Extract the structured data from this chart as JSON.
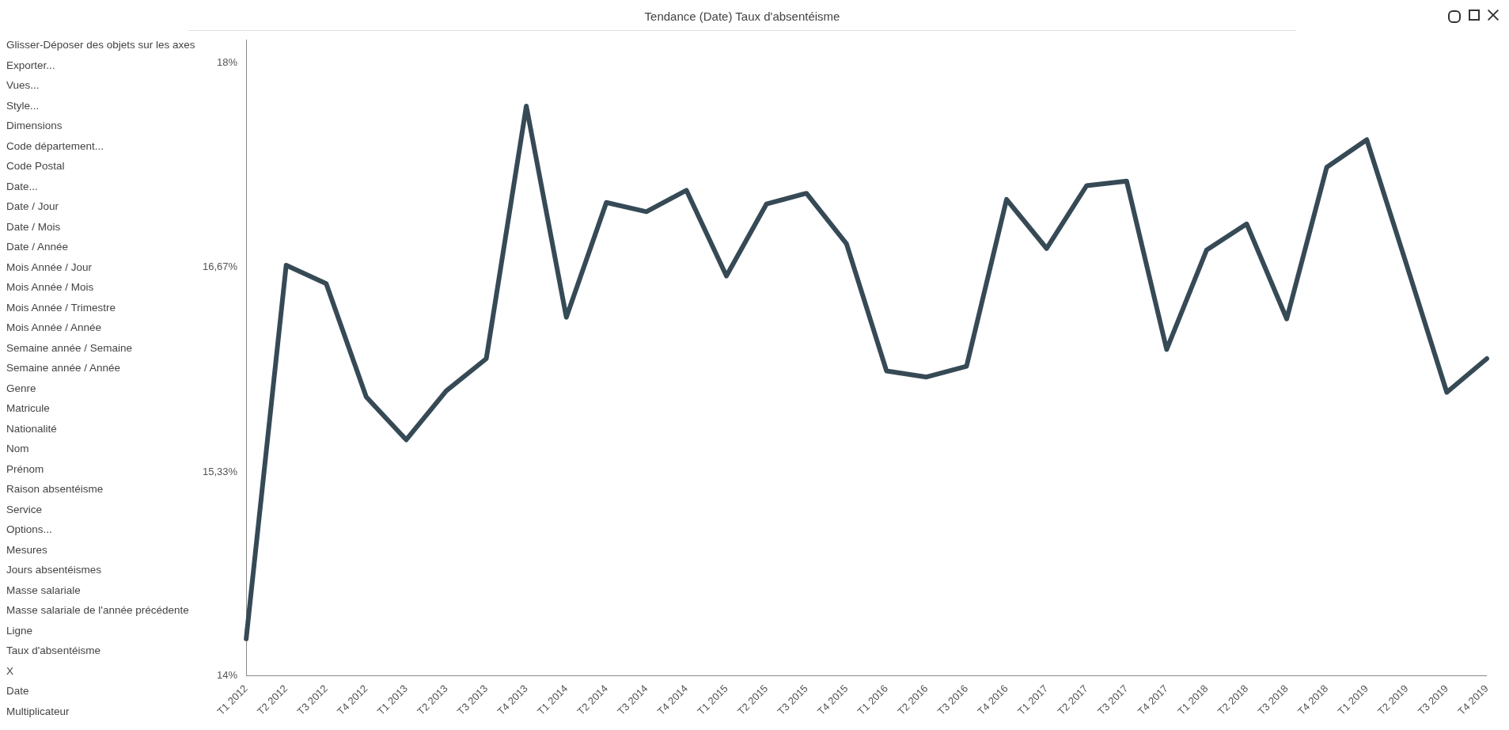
{
  "chart_data": {
    "type": "line",
    "title": "Tendance (Date) Taux d'absentéisme",
    "categories": [
      "T1 2012",
      "T2 2012",
      "T3 2012",
      "T4 2012",
      "T1 2013",
      "T2 2013",
      "T3 2013",
      "T4 2013",
      "T1 2014",
      "T2 2014",
      "T3 2014",
      "T4 2014",
      "T1 2015",
      "T2 2015",
      "T3 2015",
      "T4 2015",
      "T1 2016",
      "T2 2016",
      "T3 2016",
      "T4 2016",
      "T1 2017",
      "T2 2017",
      "T3 2017",
      "T4 2017",
      "T1 2018",
      "T2 2018",
      "T3 2018",
      "T4 2018",
      "T1 2019",
      "T2 2019",
      "T3 2019",
      "T4 2019"
    ],
    "series": [
      {
        "color": "#364a56",
        "values": [
          14.24,
          16.68,
          16.56,
          15.82,
          15.54,
          15.86,
          16.07,
          17.72,
          16.34,
          17.09,
          17.03,
          17.17,
          16.61,
          17.08,
          17.15,
          16.82,
          15.99,
          15.95,
          16.02,
          17.11,
          16.79,
          17.2,
          17.23,
          16.13,
          16.78,
          16.95,
          16.33,
          17.32,
          17.5,
          16.68,
          15.85,
          16.07
        ]
      }
    ],
    "ylim": [
      14,
      18.15
    ],
    "yticks": [
      {
        "value": 14,
        "label": "14%"
      },
      {
        "value": 15.33,
        "label": "15,33%"
      },
      {
        "value": 16.67,
        "label": "16,67%"
      },
      {
        "value": 18,
        "label": "18%"
      }
    ],
    "grid": false,
    "legend": false,
    "marker": "none",
    "line_style": "solid",
    "annotations": [
      "Glisser-Déposer des objets sur les axes",
      "Exporter...",
      "Vues...",
      "Style...",
      "Dimensions",
      "Code département...",
      "Code Postal",
      "Date...",
      "Date / Jour",
      "Date / Mois",
      "Date / Année",
      "Mois Année / Jour",
      "Mois Année / Mois",
      "Mois Année / Trimestre",
      "Mois Année / Année",
      "Semaine année / Semaine",
      "Semaine année / Année",
      "Genre",
      "Matricule",
      "Nationalité",
      "Nom",
      "Prénom",
      "Raison absentéisme",
      "Service",
      "Options...",
      "Mesures",
      "Jours absentéismes",
      "Masse salariale",
      "Masse salariale de l'année précédente",
      "Ligne",
      "Taux d'absentéisme",
      "X",
      "Date",
      "Multiplicateur"
    ]
  }
}
